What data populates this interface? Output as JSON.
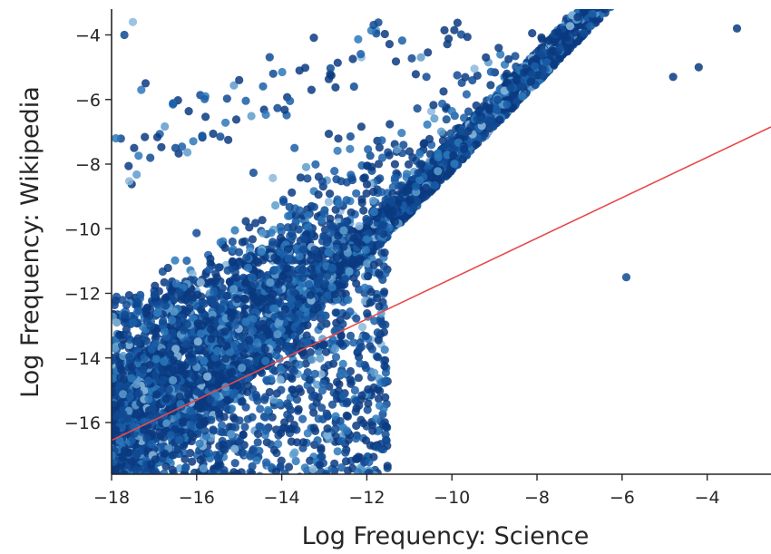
{
  "chart_data": {
    "type": "scatter",
    "title": "",
    "xlabel": "Log Frequency: Science",
    "ylabel": "Log Frequency: Wikipedia",
    "xlim": [
      -18,
      -2.5
    ],
    "ylim": [
      -17.6,
      -3.2
    ],
    "x_ticks": [
      -18,
      -16,
      -14,
      -12,
      -10,
      -8,
      -6,
      -4
    ],
    "y_ticks": [
      -16,
      -14,
      -12,
      -10,
      -8,
      -6,
      -4
    ],
    "x_tick_labels": [
      "−18",
      "−16",
      "−14",
      "−12",
      "−10",
      "−8",
      "−6",
      "−4"
    ],
    "y_tick_labels": [
      "−16",
      "−14",
      "−12",
      "−10",
      "−8",
      "−6",
      "−4"
    ],
    "grid": false,
    "spines": "left-bottom",
    "point_colors": [
      "#0b3a80",
      "#114a93",
      "#1a5ea8",
      "#2c78bb",
      "#5d9ccd",
      "#8bb9dc"
    ],
    "point_alpha": 0.85,
    "density_note": "tens of thousands of overlapping points, densest near bottom-left",
    "outliers": [
      {
        "x": -17.7,
        "y": -4.0
      },
      {
        "x": -17.5,
        "y": -3.6
      },
      {
        "x": -17.3,
        "y": -5.7
      },
      {
        "x": -17.2,
        "y": -5.5
      },
      {
        "x": -15.0,
        "y": -5.4
      },
      {
        "x": -14.2,
        "y": -5.2
      },
      {
        "x": -13.3,
        "y": -5.7
      },
      {
        "x": -12.3,
        "y": -5.6
      },
      {
        "x": -10.6,
        "y": -5.3
      },
      {
        "x": -9.2,
        "y": -4.7
      },
      {
        "x": -8.9,
        "y": -4.4
      },
      {
        "x": -3.3,
        "y": -3.8
      },
      {
        "x": -4.2,
        "y": -5.0
      },
      {
        "x": -4.8,
        "y": -5.3
      },
      {
        "x": -5.9,
        "y": -11.5
      },
      {
        "x": -17.9,
        "y": -7.2
      },
      {
        "x": -16.5,
        "y": -7.5
      },
      {
        "x": -13.7,
        "y": -7.5
      }
    ],
    "regression_line": {
      "color": "#e8484a",
      "points": [
        [
          -18,
          -16.55
        ],
        [
          -2.5,
          -6.85
        ]
      ]
    }
  }
}
